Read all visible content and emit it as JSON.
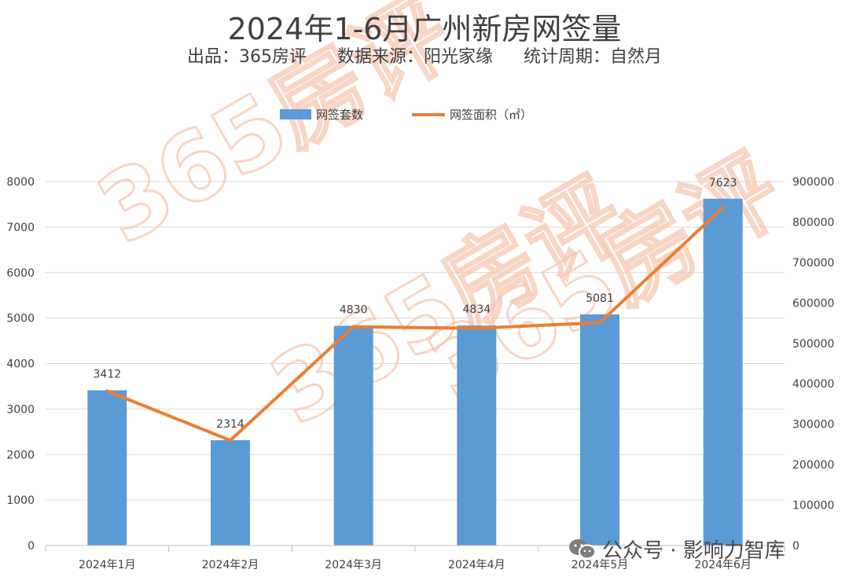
{
  "header": {
    "title": "2024年1-6月广州新房网签量",
    "subtitle_items": [
      "出品：365房评",
      "数据来源：阳光家缘",
      "统计周期：自然月"
    ]
  },
  "watermark": {
    "text": "365房评",
    "color": "#f6c7b1"
  },
  "brand": {
    "text": "公众号 · 影响力智库",
    "icon": "wechat-icon"
  },
  "chart_data": {
    "type": "bar",
    "categories": [
      "2024年1月",
      "2024年2月",
      "2024年3月",
      "2024年4月",
      "2024年5月",
      "2024年6月"
    ],
    "series": [
      {
        "name": "网签套数",
        "type": "bar",
        "axis": "left",
        "color": "#5b9bd5",
        "values": [
          3412,
          2314,
          4830,
          4834,
          5081,
          7623
        ],
        "show_labels": true
      },
      {
        "name": "网签面积（㎡）",
        "type": "line",
        "axis": "right",
        "color": "#ed7d31",
        "values": [
          382000,
          260000,
          541000,
          537000,
          551000,
          836000
        ]
      }
    ],
    "y_left": {
      "min": 0,
      "max": 8000,
      "ticks": [
        0,
        1000,
        2000,
        3000,
        4000,
        5000,
        6000,
        7000,
        8000
      ]
    },
    "y_right": {
      "min": 0,
      "max": 900000,
      "ticks": [
        0,
        100000,
        200000,
        300000,
        400000,
        500000,
        600000,
        700000,
        800000,
        900000
      ]
    },
    "grid": true,
    "legend_position": "top"
  }
}
